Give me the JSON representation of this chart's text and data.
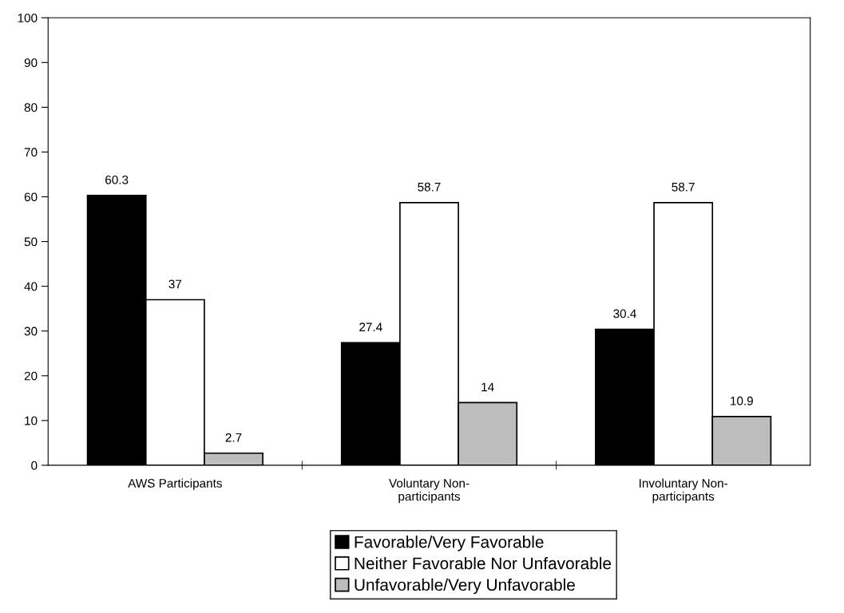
{
  "chart_data": {
    "type": "bar",
    "categories": [
      "AWS Participants",
      "Voluntary Non-\nparticipants",
      "Involuntary Non-\nparticipants"
    ],
    "series": [
      {
        "name": "Favorable/Very Favorable",
        "color": "#000000",
        "values": [
          60.3,
          27.4,
          30.4
        ]
      },
      {
        "name": "Neither Favorable Nor Unfavorable",
        "color": "#ffffff",
        "values": [
          37,
          58.7,
          58.7
        ]
      },
      {
        "name": "Unfavorable/Very Unfavorable",
        "color": "#bdbdbd",
        "values": [
          2.7,
          14,
          10.9
        ]
      }
    ],
    "ylim": [
      0,
      100
    ],
    "yticks": [
      0,
      10,
      20,
      30,
      40,
      50,
      60,
      70,
      80,
      90,
      100
    ],
    "data_labels": true,
    "grid": false,
    "legend": "bottom"
  }
}
